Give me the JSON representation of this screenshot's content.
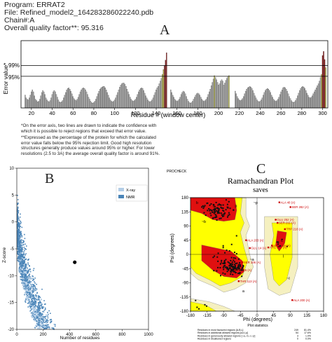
{
  "header": {
    "program": "Program: ERRAT2",
    "file": "File: Refined_model2_164283286022240.pdb",
    "chain": "Chain#:A",
    "quality": "Overall quality factor**: 95.316"
  },
  "panel_labels": {
    "a": "A",
    "b": "B",
    "c": "C"
  },
  "errat": {
    "notes": [
      "*On the error axis, two lines are drawn to indicate the confidence with",
      "which it is possible to reject regions that exceed that error value.",
      "**Expressed as the percentage of the protein for which the calculated",
      "error value falls below the 95% rejection limit. Good high resolution",
      "structures generally produce values around 95% or higher. For lower",
      "resolutions (2.5 to 3A) the average overall quality factor is around 91%."
    ]
  },
  "prosa": {
    "legend": {
      "xray": "X-ray",
      "nmr": "NMR"
    }
  },
  "rama": {
    "procheck": "PROCHECK",
    "title": "Ramachandran Plot",
    "subtitle": "saves",
    "stats_title": "Plot statistics",
    "stats": [
      {
        "label": "Residues in most favoured regions [A,B,L]",
        "n": "249",
        "pct": "81.4%"
      },
      {
        "label": "Residues in additional allowed regions [a,b,l,p]",
        "n": "54",
        "pct": "17.6%"
      },
      {
        "label": "Residues in generously allowed regions [~a,~b,~l,~p]",
        "n": "3",
        "pct": "1.0%"
      },
      {
        "label": "Residues in disallowed regions",
        "n": "0",
        "pct": "0.0%"
      }
    ],
    "annotations": [
      "ALA 48 (A)",
      "SER 282 (A)",
      "GLU 252 (A)",
      "SER 211 (A)",
      "TRP 218 (A)",
      "ALA 203 (A)",
      "ARG 169 (A)",
      "ARG 248 (A)",
      "GLU 14 (A)",
      "SER 106 (A)",
      "ILE 196 (A)",
      "THR 113 (A)",
      "ALA 200 (A)"
    ]
  },
  "chart_data": [
    {
      "type": "bar",
      "title": "",
      "xlabel": "Residue # (window center)",
      "ylabel": "Error value*",
      "xlim": [
        10,
        305
      ],
      "xticks": [
        20,
        40,
        60,
        80,
        100,
        120,
        140,
        160,
        180,
        200,
        220,
        240,
        260,
        280,
        300
      ],
      "threshold_labels": [
        "99%",
        "95%"
      ],
      "thresholds_level": [
        0.63,
        0.47
      ],
      "segments": [
        {
          "from": 14,
          "to": 150,
          "values": [
            0.19,
            0.15,
            0.13,
            0.12,
            0.15,
            0.19,
            0.24,
            0.27,
            0.24,
            0.18,
            0.13,
            0.11,
            0.09,
            0.1,
            0.13,
            0.18,
            0.23,
            0.26,
            0.24,
            0.2,
            0.15,
            0.12,
            0.1,
            0.09,
            0.11,
            0.15,
            0.2,
            0.24,
            0.26,
            0.24,
            0.2,
            0.16,
            0.12,
            0.09,
            0.08,
            0.09,
            0.11,
            0.15,
            0.19,
            0.23,
            0.27,
            0.29,
            0.3,
            0.28,
            0.25,
            0.21,
            0.17,
            0.14,
            0.12,
            0.11,
            0.13,
            0.16,
            0.2,
            0.24,
            0.27,
            0.29,
            0.3,
            0.29,
            0.27,
            0.24,
            0.2,
            0.16,
            0.13,
            0.1,
            0.08,
            0.07,
            0.08,
            0.1,
            0.13,
            0.17,
            0.21,
            0.25,
            0.28,
            0.3,
            0.31,
            0.32,
            0.32,
            0.3,
            0.27,
            0.23,
            0.19,
            0.15,
            0.12,
            0.1,
            0.09,
            0.1,
            0.12,
            0.15,
            0.19,
            0.23,
            0.27,
            0.31,
            0.34,
            0.36,
            0.37,
            0.37,
            0.35,
            0.32,
            0.28,
            0.24,
            0.2,
            0.16,
            0.13,
            0.11,
            0.1,
            0.11,
            0.13,
            0.16,
            0.2,
            0.24,
            0.27,
            0.29,
            0.3,
            0.29,
            0.26,
            0.22,
            0.18,
            0.15,
            0.12,
            0.1,
            0.09,
            0.1,
            0.12,
            0.15,
            0.19,
            0.23,
            0.27,
            0.3,
            0.32,
            0.36,
            0.4,
            0.44,
            0.5,
            0.57,
            0.63,
            0.71,
            0.82
          ]
        },
        {
          "from": 154,
          "to": 210,
          "values": [
            0.27,
            0.23,
            0.19,
            0.16,
            0.13,
            0.11,
            0.1,
            0.11,
            0.13,
            0.16,
            0.2,
            0.23,
            0.25,
            0.24,
            0.21,
            0.17,
            0.13,
            0.1,
            0.08,
            0.07,
            0.08,
            0.1,
            0.13,
            0.16,
            0.19,
            0.21,
            0.22,
            0.21,
            0.19,
            0.16,
            0.13,
            0.11,
            0.1,
            0.11,
            0.13,
            0.16,
            0.2,
            0.24,
            0.28,
            0.33,
            0.38,
            0.43,
            0.48,
            0.45,
            0.42,
            0.38,
            0.34,
            0.36,
            0.4,
            0.42,
            0.4,
            0.34,
            0.37,
            0.41,
            0.44,
            0.46,
            0.48
          ]
        },
        {
          "from": 216,
          "to": 299,
          "values": [
            0.25,
            0.21,
            0.17,
            0.14,
            0.12,
            0.11,
            0.12,
            0.14,
            0.17,
            0.21,
            0.25,
            0.28,
            0.3,
            0.31,
            0.32,
            0.31,
            0.29,
            0.26,
            0.22,
            0.18,
            0.15,
            0.12,
            0.1,
            0.09,
            0.1,
            0.12,
            0.15,
            0.19,
            0.23,
            0.26,
            0.28,
            0.29,
            0.28,
            0.26,
            0.23,
            0.19,
            0.16,
            0.13,
            0.11,
            0.1,
            0.11,
            0.13,
            0.16,
            0.2,
            0.24,
            0.27,
            0.3,
            0.31,
            0.3,
            0.28,
            0.25,
            0.21,
            0.17,
            0.14,
            0.11,
            0.09,
            0.08,
            0.09,
            0.11,
            0.14,
            0.18,
            0.22,
            0.26,
            0.29,
            0.31,
            0.32,
            0.31,
            0.29,
            0.26,
            0.22,
            0.19,
            0.16,
            0.15,
            0.16,
            0.18,
            0.21,
            0.24,
            0.27,
            0.3,
            0.33,
            0.36,
            0.4,
            0.45,
            0.5
          ]
        },
        {
          "from": 300,
          "to": 303,
          "values": [
            0.78,
            0.84,
            0.72,
            0.6
          ]
        }
      ],
      "colors": {
        "normal": "#b4b4b4",
        "over95": "#c8c84a",
        "over99": "#8e1a1a"
      }
    },
    {
      "type": "scatter",
      "xlabel": "Number of residues",
      "ylabel": "Z-score",
      "xlim": [
        0,
        1000
      ],
      "ylim": [
        -20,
        10
      ],
      "xticks": [
        0,
        200,
        400,
        600,
        800,
        1000
      ],
      "yticks": [
        10,
        5,
        0,
        -5,
        -10,
        -15,
        -20
      ],
      "series": [
        {
          "name": "X-ray",
          "color": "#b3cde6"
        },
        {
          "name": "NMR",
          "color": "#4b85b8"
        }
      ],
      "highlight": {
        "x": 440,
        "y": -7.5,
        "color": "#000000"
      }
    },
    {
      "type": "scatter",
      "xlabel": "Phi (degrees)",
      "ylabel": "Psi (degrees)",
      "xlim": [
        -180,
        180
      ],
      "ylim": [
        -180,
        180
      ],
      "xticks": [
        -180,
        -135,
        -90,
        -45,
        0,
        45,
        90,
        135,
        180
      ],
      "yticks": [
        180,
        135,
        90,
        45,
        0,
        -45,
        -90,
        -135,
        -180
      ],
      "region_letters": [
        "b",
        "B",
        "A",
        "a",
        "L",
        "l",
        "p",
        "~b",
        "~a",
        "~l",
        "~p"
      ],
      "colors": {
        "core": "#e01010",
        "allowed": "#ffff00",
        "generous": "#f5f0c0",
        "points": "#111111"
      }
    }
  ]
}
